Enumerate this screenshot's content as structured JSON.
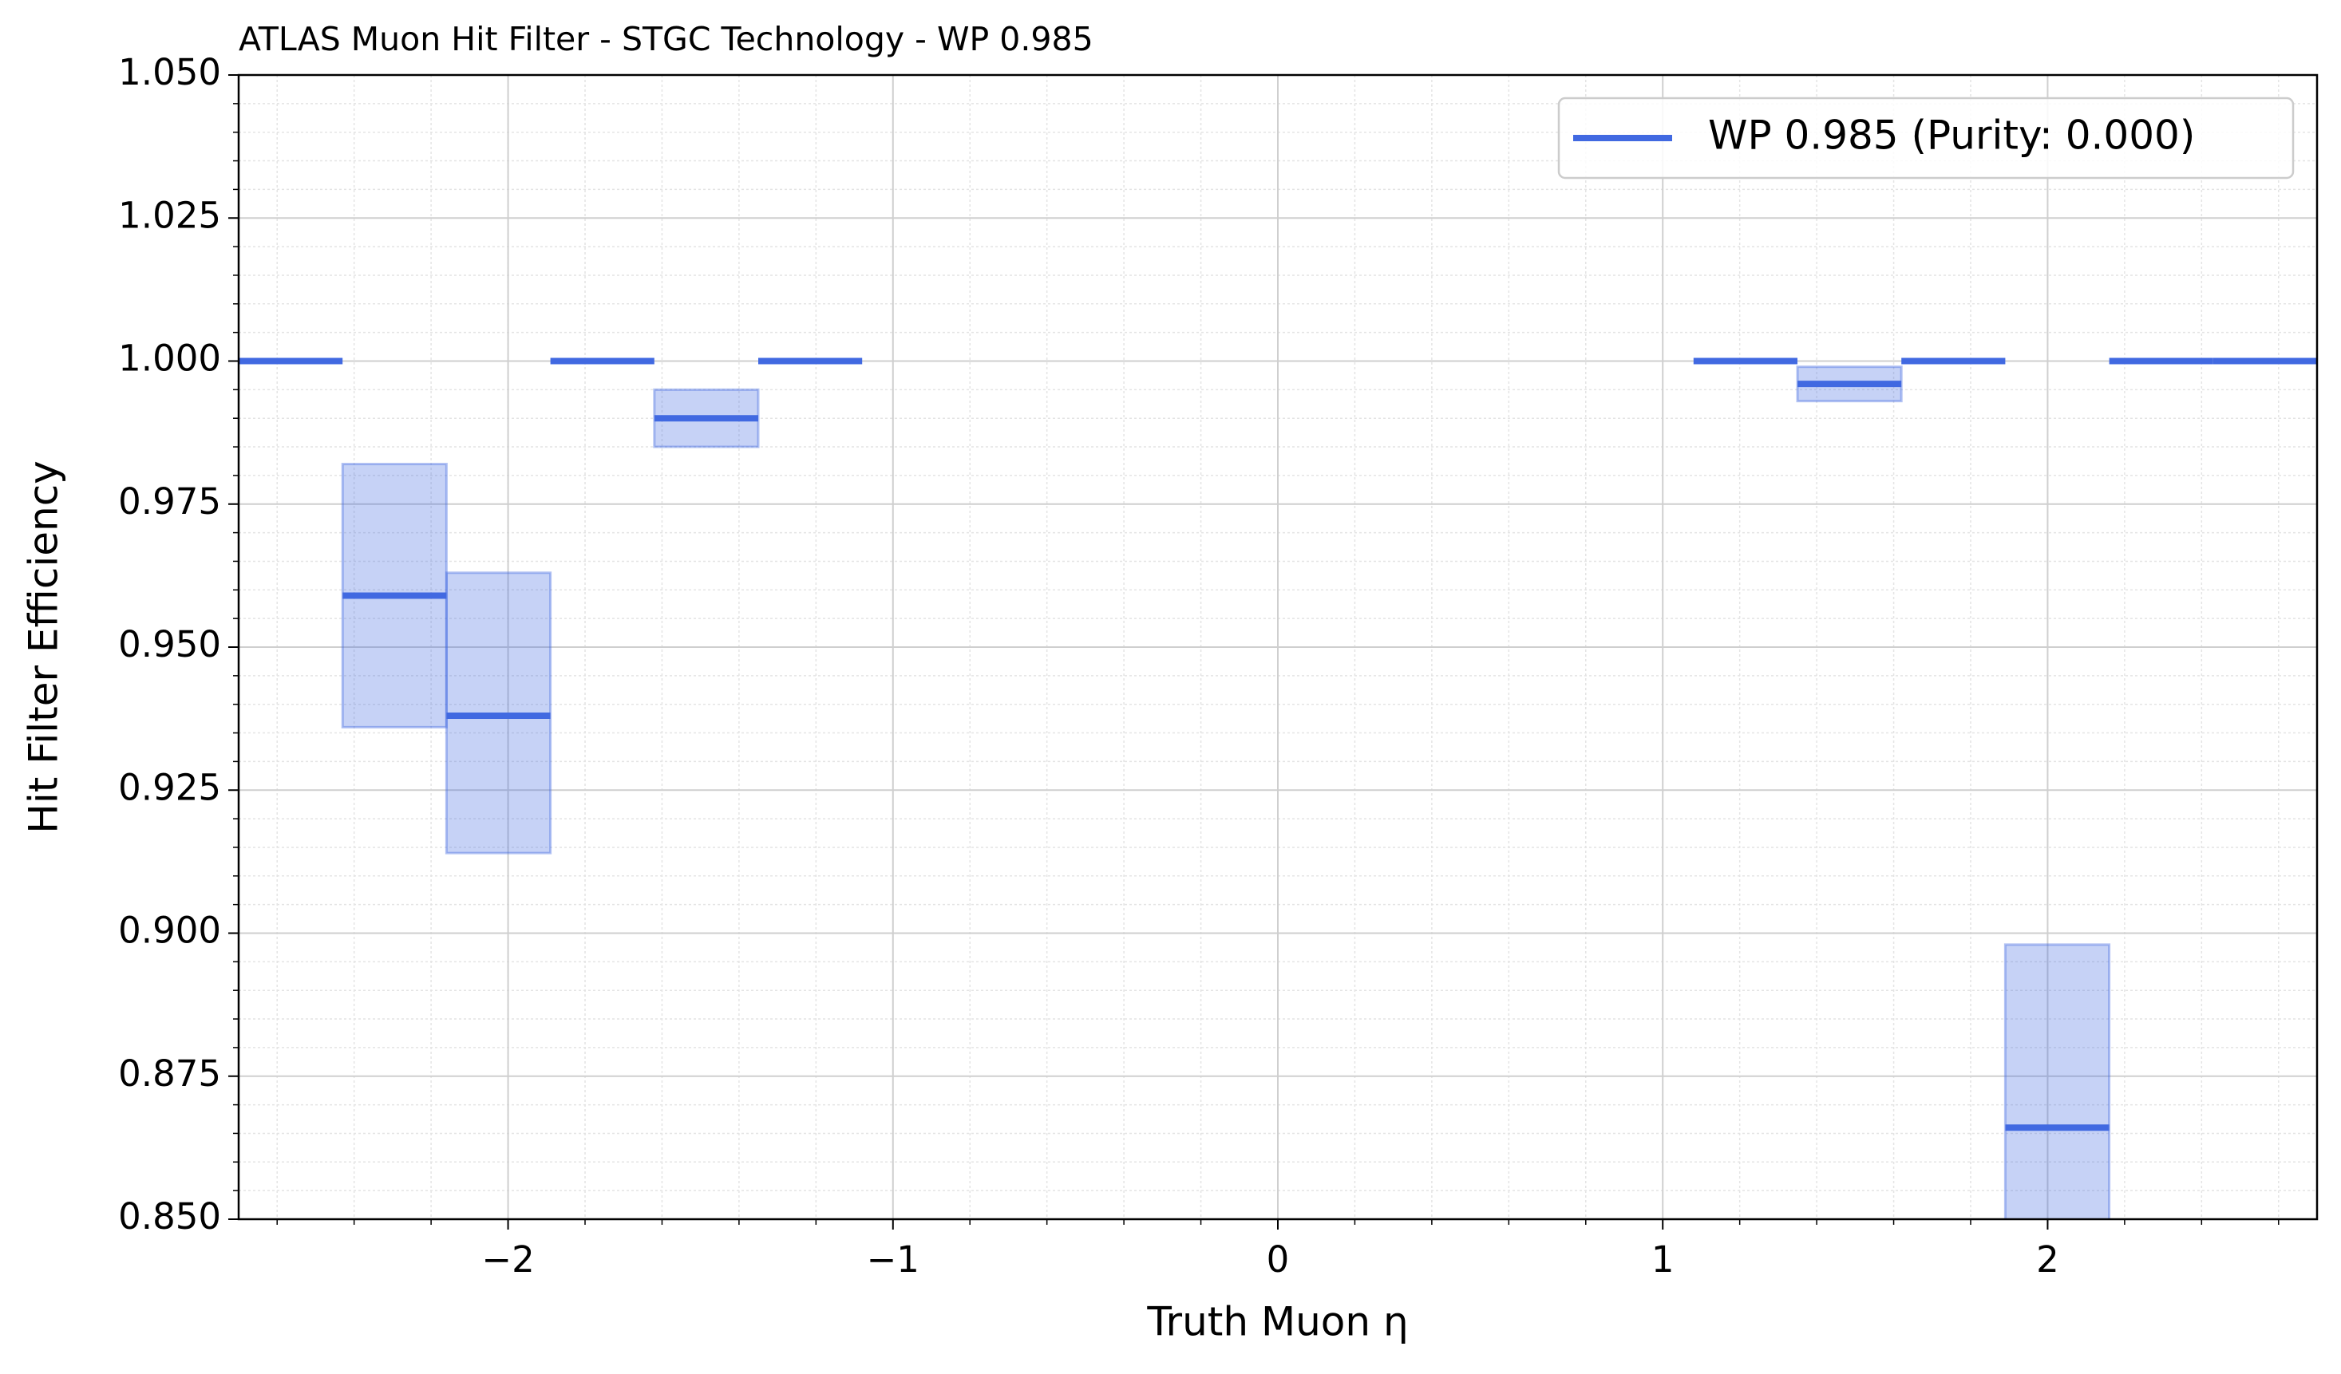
{
  "chart_data": {
    "type": "binned_step",
    "title": "ATLAS Muon Hit Filter - STGC Technology - WP 0.985",
    "xlabel": "Truth Muon η",
    "ylabel": "Hit Filter Efficiency",
    "bin_edges": [
      -2.7,
      -2.43,
      -2.16,
      -1.89,
      -1.62,
      -1.35,
      -1.08,
      -0.81,
      -0.54,
      -0.27,
      0,
      0.27,
      0.54,
      0.81,
      1.08,
      1.35,
      1.62,
      1.89,
      2.16,
      2.43,
      2.7
    ],
    "series": [
      {
        "name": "WP 0.985 (Purity: 0.000)",
        "color": "#4169e1",
        "values": [
          1.0,
          0.959,
          0.938,
          1.0,
          0.99,
          1.0,
          null,
          null,
          null,
          null,
          null,
          null,
          null,
          null,
          1.0,
          0.996,
          1.0,
          0.866,
          1.0,
          1.0
        ],
        "lower": [
          null,
          0.936,
          0.914,
          null,
          0.985,
          null,
          null,
          null,
          null,
          null,
          null,
          null,
          null,
          null,
          null,
          0.993,
          null,
          0.834,
          null,
          null
        ],
        "upper": [
          null,
          0.982,
          0.963,
          null,
          0.995,
          null,
          null,
          null,
          null,
          null,
          null,
          null,
          null,
          null,
          null,
          0.999,
          null,
          0.898,
          null,
          null
        ]
      }
    ],
    "xlim": [
      -2.7,
      2.7
    ],
    "ylim": [
      0.85,
      1.05
    ],
    "xticks": [
      {
        "value": -2,
        "label": "−2"
      },
      {
        "value": -1,
        "label": "−1"
      },
      0,
      1,
      2
    ],
    "yticks": [
      {
        "value": 0.85,
        "label": "0.850"
      },
      {
        "value": 0.875,
        "label": "0.875"
      },
      {
        "value": 0.9,
        "label": "0.900"
      },
      {
        "value": 0.925,
        "label": "0.925"
      },
      {
        "value": 0.95,
        "label": "0.950"
      },
      {
        "value": 0.975,
        "label": "0.975"
      },
      {
        "value": 1.0,
        "label": "1.000"
      },
      {
        "value": 1.025,
        "label": "1.025"
      },
      {
        "value": 1.05,
        "label": "1.050"
      }
    ],
    "grid": true,
    "minor_grid": true,
    "legend": "upper right"
  }
}
